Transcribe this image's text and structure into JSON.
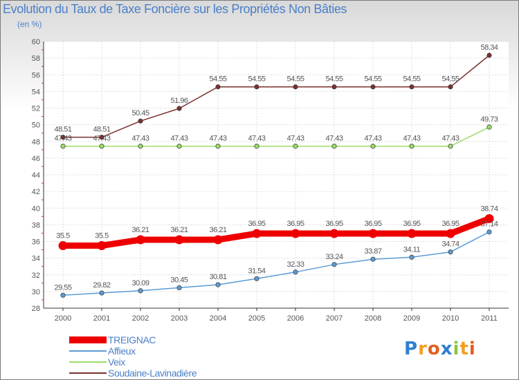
{
  "chart_data": {
    "type": "line",
    "title": "Evolution du Taux de Taxe Foncière sur les Propriétés Non Bâties",
    "unit_label": "(en %)",
    "categories": [
      "2000",
      "2001",
      "2002",
      "2003",
      "2004",
      "2005",
      "2006",
      "2007",
      "2008",
      "2009",
      "2010",
      "2011"
    ],
    "ylim": [
      28,
      60
    ],
    "yticks": [
      28,
      30,
      32,
      34,
      36,
      38,
      40,
      42,
      44,
      46,
      48,
      50,
      52,
      54,
      56,
      58,
      60
    ],
    "series": [
      {
        "name": "TREIGNAC",
        "color": "#ee0000",
        "labels": [
          "35.5",
          "35.5",
          "36.21",
          "36.21",
          "36.21",
          "36.95",
          "36.95",
          "36.95",
          "36.95",
          "36.95",
          "36.95",
          "38.74"
        ],
        "values": [
          35.5,
          35.5,
          36.21,
          36.21,
          36.21,
          36.95,
          36.95,
          36.95,
          36.95,
          36.95,
          36.95,
          38.74
        ]
      },
      {
        "name": "Affieux",
        "color": "#5b9bd5",
        "labels": [
          "29.55",
          "29.82",
          "30.09",
          "30.45",
          "30.81",
          "31.54",
          "32.33",
          "33.24",
          "33.87",
          "34.11",
          "34.74",
          "37.14"
        ],
        "values": [
          29.55,
          29.82,
          30.09,
          30.45,
          30.81,
          31.54,
          32.33,
          33.24,
          33.87,
          34.11,
          34.74,
          37.14
        ]
      },
      {
        "name": "Veix",
        "color": "#99dd66",
        "labels": [
          "47.43",
          "47.43",
          "47.43",
          "47.43",
          "47.43",
          "47.43",
          "47.43",
          "47.43",
          "47.43",
          "47.43",
          "47.43",
          "49.73"
        ],
        "values": [
          47.43,
          47.43,
          47.43,
          47.43,
          47.43,
          47.43,
          47.43,
          47.43,
          47.43,
          47.43,
          47.43,
          49.73
        ]
      },
      {
        "name": "Soudaine-Lavinadière",
        "color": "#7a2f2f",
        "labels": [
          "48.51",
          "48.51",
          "50.45",
          "51.96",
          "54.55",
          "54.55",
          "54.55",
          "54.55",
          "54.55",
          "54.55",
          "54.55",
          "58.34"
        ],
        "values": [
          48.51,
          48.51,
          50.45,
          51.96,
          54.55,
          54.55,
          54.55,
          54.55,
          54.55,
          54.55,
          54.55,
          58.34
        ]
      }
    ]
  },
  "logo": {
    "p": "P",
    "r": "r",
    "o": "o",
    "x": "x",
    "i": "i",
    "t": "t",
    "i2": "i"
  }
}
